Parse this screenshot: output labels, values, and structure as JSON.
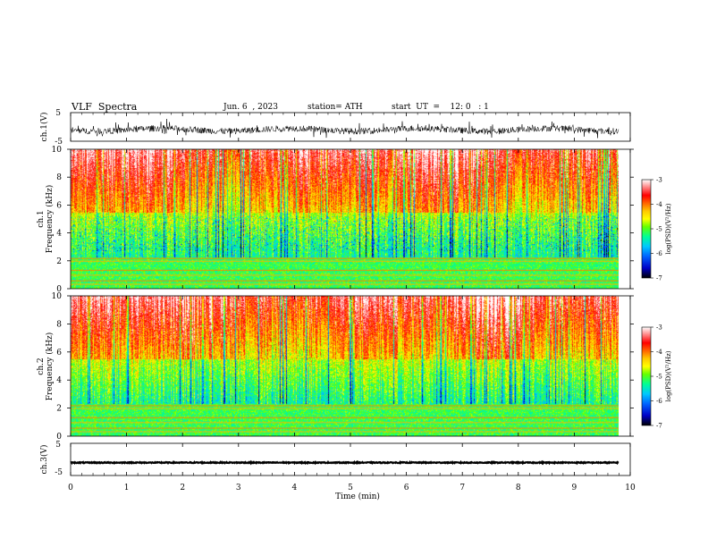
{
  "header": {
    "title": "VLF  Spectra",
    "date": "Jun. 6  , 2023",
    "station": "station= ATH",
    "start_ut": "start  UT  =    12: 0   : 1"
  },
  "chart_data": [
    {
      "type": "line",
      "panel": "ch1-waveform",
      "ylabel": "ch.1(V)",
      "ylim": [
        -5,
        5
      ],
      "yticks": [
        "5",
        "-5"
      ],
      "description_of_signal": "noisy waveform around -1 V",
      "approx_level": -1,
      "xlim": [
        0,
        10
      ]
    },
    {
      "type": "heatmap",
      "panel": "ch1-spectrogram",
      "ylabel": "ch.1\nFrequency  (kHz)",
      "ylabel_line1": "ch.1",
      "ylabel_line2": "Frequency  (kHz)",
      "ylim": [
        0,
        10
      ],
      "yticks": [
        "0",
        "2",
        "4",
        "6",
        "8",
        "10"
      ],
      "xlim": [
        0,
        10
      ],
      "data_extent_min": 9.8,
      "colorbar": {
        "label": "log(PSD)(V²/Hz)",
        "ticks": [
          "-3",
          "-4",
          "-5",
          "-6",
          "-7"
        ],
        "range": [
          -7,
          -3
        ]
      }
    },
    {
      "type": "heatmap",
      "panel": "ch2-spectrogram",
      "ylabel_line1": "ch.2",
      "ylabel_line2": "Frequency  (kHz)",
      "ylim": [
        0,
        10
      ],
      "yticks": [
        "0",
        "2",
        "4",
        "6",
        "8",
        "10"
      ],
      "xlim": [
        0,
        10
      ],
      "data_extent_min": 9.8,
      "colorbar": {
        "label": "log(PSD)(V²/Hz)",
        "ticks": [
          "-3",
          "-4",
          "-5",
          "-6",
          "-7"
        ],
        "range": [
          -7,
          -3
        ]
      }
    },
    {
      "type": "line",
      "panel": "ch3-waveform",
      "ylabel": "ch.3(V)",
      "ylim": [
        -5,
        5
      ],
      "yticks": [
        "5",
        "-5"
      ],
      "approx_level": -1,
      "xlim": [
        0,
        10
      ],
      "xlabel": "Time  (min)",
      "xticks": [
        "0",
        "1",
        "2",
        "3",
        "4",
        "5",
        "6",
        "7",
        "8",
        "9",
        "10"
      ]
    }
  ],
  "colors": {
    "palette": [
      "#000000",
      "#0000c8",
      "#0064ff",
      "#00c8ff",
      "#00ff96",
      "#64ff00",
      "#ffff00",
      "#ffc800",
      "#ff6400",
      "#ff0000",
      "#ff8080",
      "#ffffff"
    ]
  }
}
